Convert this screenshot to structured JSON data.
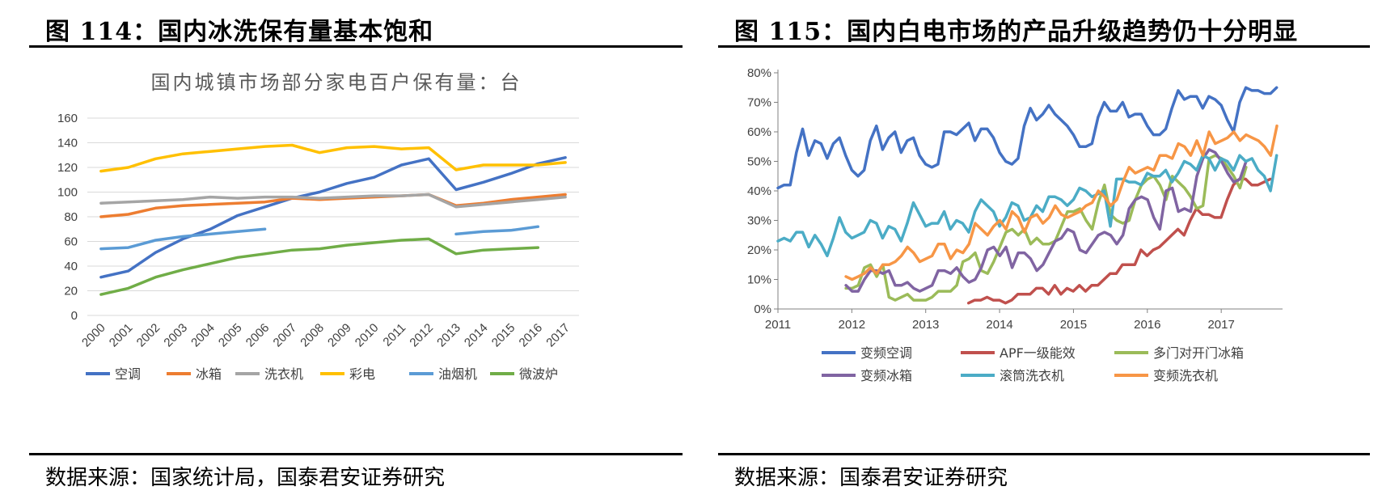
{
  "left": {
    "figure_title": "图 114：国内冰洗保有量基本饱和",
    "source": "数据来源：国家统计局，国泰君安证券研究",
    "chart_data": {
      "type": "line",
      "title": "国内城镇市场部分家电百户保有量：台",
      "categories": [
        "2000",
        "2001",
        "2002",
        "2003",
        "2004",
        "2005",
        "2006",
        "2007",
        "2008",
        "2009",
        "2010",
        "2011",
        "2012",
        "2013",
        "2014",
        "2015",
        "2016",
        "2017"
      ],
      "y_ticks": [
        "0",
        "20",
        "40",
        "60",
        "80",
        "100",
        "120",
        "140",
        "160"
      ],
      "ylim": [
        0,
        160
      ],
      "grid": true,
      "legend_position": "bottom",
      "series": [
        {
          "name": "空调",
          "color": "#4472C4",
          "values": [
            31,
            36,
            51,
            62,
            70,
            81,
            88,
            95,
            100,
            107,
            112,
            122,
            127,
            102,
            108,
            115,
            123,
            128
          ]
        },
        {
          "name": "冰箱",
          "color": "#ED7D31",
          "values": [
            80,
            82,
            87,
            89,
            90,
            91,
            92,
            95,
            94,
            95,
            96,
            97,
            98,
            89,
            91,
            94,
            96,
            98
          ]
        },
        {
          "name": "洗衣机",
          "color": "#A5A5A5",
          "values": [
            91,
            92,
            93,
            94,
            96,
            95,
            96,
            96,
            95,
            96,
            97,
            97,
            98,
            88,
            90,
            92,
            94,
            96
          ]
        },
        {
          "name": "彩电",
          "color": "#FFC000",
          "values": [
            117,
            120,
            127,
            131,
            133,
            135,
            137,
            138,
            132,
            136,
            137,
            135,
            136,
            118,
            122,
            122,
            122,
            124
          ]
        },
        {
          "name": "油烟机",
          "color": "#5B9BD5",
          "values": [
            54,
            55,
            61,
            64,
            66,
            68,
            70,
            null,
            null,
            null,
            null,
            null,
            null,
            66,
            68,
            69,
            72,
            null
          ]
        },
        {
          "name": "微波炉",
          "color": "#70AD47",
          "values": [
            17,
            22,
            31,
            37,
            42,
            47,
            50,
            53,
            54,
            57,
            59,
            61,
            62,
            50,
            53,
            54,
            55,
            null
          ]
        }
      ]
    }
  },
  "right": {
    "figure_title": "图 115：国内白电市场的产品升级趋势仍十分明显",
    "source": "数据来源：国泰君安证券研究",
    "chart_data": {
      "type": "line",
      "title": "",
      "x_ticks": [
        "2011",
        "2012",
        "2013",
        "2014",
        "2015",
        "2016",
        "2017"
      ],
      "x_tick_values": [
        2011,
        2012,
        2013,
        2014,
        2015,
        2016,
        2017
      ],
      "xlim": [
        2011,
        2017.83
      ],
      "y_ticks": [
        "0%",
        "10%",
        "20%",
        "30%",
        "40%",
        "50%",
        "60%",
        "70%",
        "80%"
      ],
      "ylim": [
        0,
        80
      ],
      "grid": false,
      "legend_position": "bottom",
      "series": [
        {
          "name": "变频空调",
          "color": "#4472C4",
          "start": 2011.0,
          "step": 0.08333,
          "values": [
            41,
            42,
            42,
            53,
            61,
            52,
            57,
            56,
            51,
            56,
            58,
            52,
            47,
            45,
            47,
            57,
            62,
            54,
            58,
            60,
            53,
            57,
            58,
            52,
            49,
            48,
            49,
            60,
            60,
            59,
            61,
            63,
            57,
            61,
            61,
            58,
            53,
            50,
            49,
            51,
            62,
            68,
            64,
            66,
            69,
            66,
            64,
            62,
            59,
            55,
            55,
            56,
            65,
            70,
            67,
            67,
            70,
            65,
            66,
            66,
            62,
            59,
            59,
            61,
            68,
            74,
            71,
            72,
            72,
            68,
            72,
            71,
            69,
            64,
            60,
            70,
            75,
            74,
            74,
            73,
            73,
            75
          ]
        },
        {
          "name": "APF一级能效",
          "color": "#C0504D",
          "start": 2013.58,
          "step": 0.08333,
          "values": [
            2,
            3,
            3,
            4,
            3,
            3,
            2,
            3,
            5,
            5,
            5,
            7,
            7,
            5,
            8,
            5,
            7,
            6,
            8,
            6,
            8,
            8,
            10,
            12,
            12,
            15,
            15,
            15,
            20,
            18,
            20,
            21,
            23,
            25,
            27,
            25,
            30,
            34,
            32,
            32,
            31,
            31,
            37,
            42,
            44,
            44,
            42,
            42,
            43,
            44
          ]
        },
        {
          "name": "多门对开门冰箱",
          "color": "#9BBB59",
          "start": 2011.92,
          "step": 0.08333,
          "values": [
            7,
            7,
            8,
            14,
            15,
            11,
            15,
            4,
            3,
            4,
            5,
            3,
            3,
            3,
            4,
            6,
            6,
            6,
            8,
            16,
            17,
            19,
            13,
            12,
            16,
            21,
            26,
            27,
            25,
            27,
            22,
            24,
            22,
            22,
            23,
            28,
            33,
            33,
            34,
            30,
            27,
            36,
            42,
            32,
            30,
            29,
            30,
            37,
            42,
            44,
            45,
            42,
            37,
            45,
            43,
            41,
            38,
            34,
            35,
            51,
            52,
            51,
            48,
            45,
            41,
            48
          ]
        },
        {
          "name": "变频冰箱",
          "color": "#8064A2",
          "start": 2011.92,
          "step": 0.08333,
          "values": [
            8,
            6,
            6,
            10,
            13,
            13,
            12,
            13,
            8,
            8,
            9,
            7,
            6,
            7,
            8,
            13,
            13,
            12,
            14,
            11,
            9,
            10,
            14,
            20,
            21,
            18,
            21,
            14,
            19,
            19,
            17,
            13,
            15,
            19,
            23,
            24,
            27,
            26,
            20,
            19,
            22,
            25,
            26,
            25,
            22,
            25,
            34,
            37,
            38,
            37,
            31,
            27,
            40,
            41,
            33,
            34,
            33,
            45,
            51,
            54,
            53,
            50,
            46,
            43,
            44,
            50
          ]
        },
        {
          "name": "滚筒洗衣机",
          "color": "#4BACC6",
          "start": 2011.0,
          "step": 0.08333,
          "values": [
            23,
            24,
            23,
            26,
            26,
            21,
            25,
            22,
            18,
            24,
            31,
            26,
            24,
            25,
            26,
            30,
            29,
            24,
            28,
            27,
            23,
            29,
            36,
            32,
            28,
            29,
            29,
            33,
            27,
            30,
            29,
            26,
            33,
            37,
            35,
            33,
            28,
            31,
            36,
            35,
            30,
            31,
            35,
            33,
            38,
            38,
            37,
            35,
            37,
            41,
            40,
            38,
            39,
            40,
            28,
            44,
            44,
            43,
            43,
            42,
            46,
            45,
            45,
            47,
            43,
            46,
            50,
            49,
            47,
            52,
            51,
            47,
            51,
            50,
            47,
            52,
            50,
            51,
            47,
            45,
            40,
            52
          ]
        },
        {
          "name": "变频洗衣机",
          "color": "#F79646",
          "start": 2011.92,
          "step": 0.08333,
          "values": [
            11,
            10,
            11,
            12,
            14,
            12,
            15,
            15,
            16,
            18,
            21,
            19,
            16,
            17,
            18,
            22,
            22,
            17,
            20,
            19,
            22,
            29,
            27,
            25,
            28,
            30,
            27,
            33,
            31,
            26,
            31,
            32,
            29,
            31,
            35,
            32,
            31,
            32,
            33,
            35,
            36,
            40,
            38,
            35,
            37,
            43,
            48,
            46,
            47,
            48,
            47,
            52,
            52,
            51,
            56,
            55,
            52,
            57,
            52,
            60,
            56,
            57,
            58,
            60,
            57,
            59,
            58,
            57,
            55,
            52,
            62
          ]
        }
      ]
    }
  }
}
